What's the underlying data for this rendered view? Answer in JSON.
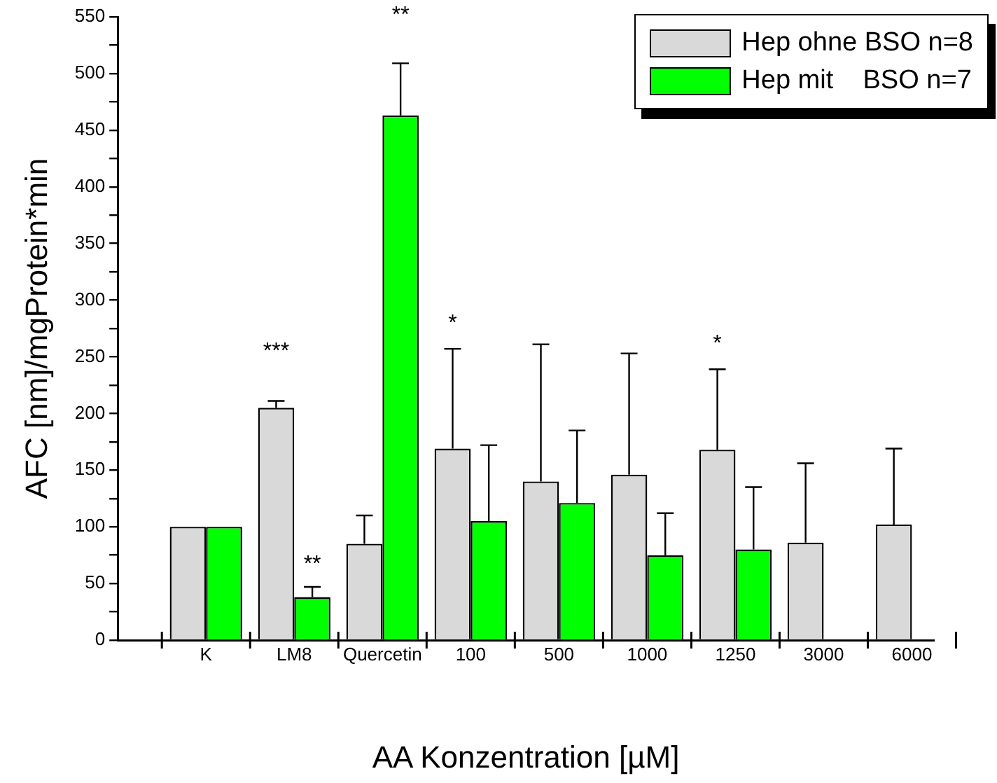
{
  "chart_data": {
    "type": "bar",
    "xlabel": "AA Konzentration [µM]",
    "ylabel": "AFC [nm]/mgProtein*min",
    "categories": [
      "K",
      "LM8",
      "Quercetin",
      "100",
      "500",
      "1000",
      "1250",
      "3000",
      "6000"
    ],
    "series": [
      {
        "name": "Hep ohne BSO n=8",
        "color": "#d9d9d9",
        "values": [
          100,
          205,
          85,
          169,
          140,
          146,
          168,
          86,
          102
        ],
        "errors": [
          null,
          [
            205,
            211
          ],
          [
            85,
            110
          ],
          [
            169,
            257
          ],
          [
            140,
            261
          ],
          [
            146,
            253
          ],
          [
            168,
            239
          ],
          [
            86,
            156
          ],
          [
            102,
            169
          ]
        ]
      },
      {
        "name": "Hep mit    BSO n=7",
        "color": "#00ff00",
        "values": [
          100,
          38,
          463,
          105,
          121,
          75,
          80,
          null,
          null
        ],
        "errors": [
          null,
          [
            38,
            47
          ],
          [
            463,
            509
          ],
          [
            105,
            172
          ],
          [
            121,
            185
          ],
          [
            75,
            112
          ],
          [
            80,
            135
          ],
          null,
          null
        ]
      }
    ],
    "ylim": [
      0,
      550
    ],
    "yticks": [
      0,
      {
        "value": 25,
        "label": null
      },
      50,
      {
        "value": 75,
        "label": null
      },
      100,
      {
        "value": 125,
        "label": null
      },
      150,
      {
        "value": 175,
        "label": null
      },
      200,
      {
        "value": 225,
        "label": null
      },
      250,
      {
        "value": 275,
        "label": null
      },
      300,
      {
        "value": 325,
        "label": null
      },
      350,
      {
        "value": 375,
        "label": null
      },
      400,
      {
        "value": 425,
        "label": null
      },
      450,
      {
        "value": 475,
        "label": null
      },
      500,
      {
        "value": 525,
        "label": null
      },
      550
    ],
    "annotations": [
      "***",
      "**",
      "**",
      "*",
      "*"
    ],
    "grid": false,
    "legend": "top right"
  }
}
